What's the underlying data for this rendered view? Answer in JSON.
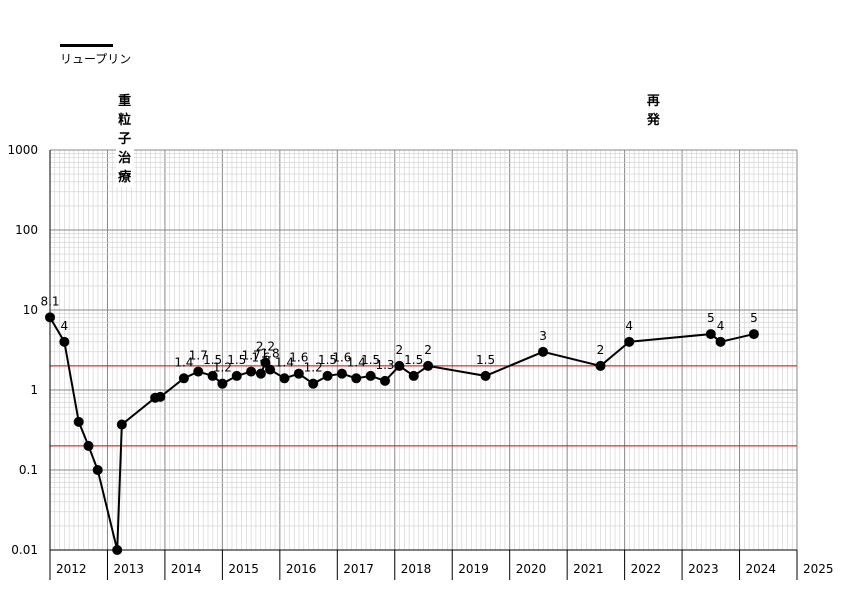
{
  "legend": {
    "label": "リュープリン",
    "color": "#000000"
  },
  "annotations": [
    {
      "text": "重粒子治療",
      "x": 2013.3
    },
    {
      "text": "再発",
      "x": 2022.5
    }
  ],
  "colors": {
    "series": "#000000",
    "reference": "#dd0000",
    "grid_major": "#888888",
    "grid_minor": "#cfcfcf"
  },
  "chart_data": {
    "type": "line",
    "y_scale": "log",
    "ylim": [
      0.01,
      1000
    ],
    "xlim": [
      2012.0,
      2025.0
    ],
    "yticks": [
      "0.01",
      "0.1",
      "1",
      "10",
      "100",
      "1000"
    ],
    "xtick_labels": [
      "2012",
      "2013",
      "2014",
      "2015",
      "2016",
      "2017",
      "2018",
      "2019",
      "2020",
      "2021",
      "2022",
      "2023",
      "2024",
      "2025"
    ],
    "reference_lines": [
      2,
      0.2
    ],
    "series": [
      {
        "name": "リュープリン",
        "points": [
          {
            "x": 2012.0,
            "y": 8.1,
            "label": "8.1"
          },
          {
            "x": 2012.25,
            "y": 4,
            "label": "4"
          },
          {
            "x": 2012.5,
            "y": 0.4,
            "label": ""
          },
          {
            "x": 2012.67,
            "y": 0.2,
            "label": ""
          },
          {
            "x": 2012.83,
            "y": 0.1,
            "label": ""
          },
          {
            "x": 2013.17,
            "y": 0.01,
            "label": ""
          },
          {
            "x": 2013.25,
            "y": 0.37,
            "label": ""
          },
          {
            "x": 2013.83,
            "y": 0.8,
            "label": ""
          },
          {
            "x": 2013.92,
            "y": 0.82,
            "label": ""
          },
          {
            "x": 2014.33,
            "y": 1.4,
            "label": "1.4"
          },
          {
            "x": 2014.58,
            "y": 1.7,
            "label": "1.7"
          },
          {
            "x": 2014.83,
            "y": 1.5,
            "label": "1.5"
          },
          {
            "x": 2015.0,
            "y": 1.2,
            "label": "1.2"
          },
          {
            "x": 2015.25,
            "y": 1.5,
            "label": "1.5"
          },
          {
            "x": 2015.5,
            "y": 1.7,
            "label": "1.7"
          },
          {
            "x": 2015.67,
            "y": 1.6,
            "label": "1.6"
          },
          {
            "x": 2015.75,
            "y": 2.2,
            "label": "2.2"
          },
          {
            "x": 2015.83,
            "y": 1.8,
            "label": "1.8"
          },
          {
            "x": 2016.08,
            "y": 1.4,
            "label": "1.4"
          },
          {
            "x": 2016.33,
            "y": 1.6,
            "label": "1.6"
          },
          {
            "x": 2016.58,
            "y": 1.2,
            "label": "1.2"
          },
          {
            "x": 2016.83,
            "y": 1.5,
            "label": "1.5"
          },
          {
            "x": 2017.08,
            "y": 1.6,
            "label": "1.6"
          },
          {
            "x": 2017.33,
            "y": 1.4,
            "label": "1.4"
          },
          {
            "x": 2017.58,
            "y": 1.5,
            "label": "1.5"
          },
          {
            "x": 2017.83,
            "y": 1.3,
            "label": "1.3"
          },
          {
            "x": 2018.08,
            "y": 2,
            "label": "2"
          },
          {
            "x": 2018.33,
            "y": 1.5,
            "label": "1.5"
          },
          {
            "x": 2018.58,
            "y": 2,
            "label": "2"
          },
          {
            "x": 2019.58,
            "y": 1.5,
            "label": "1.5"
          },
          {
            "x": 2020.58,
            "y": 3,
            "label": "3"
          },
          {
            "x": 2021.58,
            "y": 2,
            "label": "2"
          },
          {
            "x": 2022.08,
            "y": 4,
            "label": "4"
          },
          {
            "x": 2023.5,
            "y": 5,
            "label": "5"
          },
          {
            "x": 2023.67,
            "y": 4,
            "label": "4"
          },
          {
            "x": 2024.25,
            "y": 5,
            "label": "5"
          }
        ]
      }
    ]
  }
}
